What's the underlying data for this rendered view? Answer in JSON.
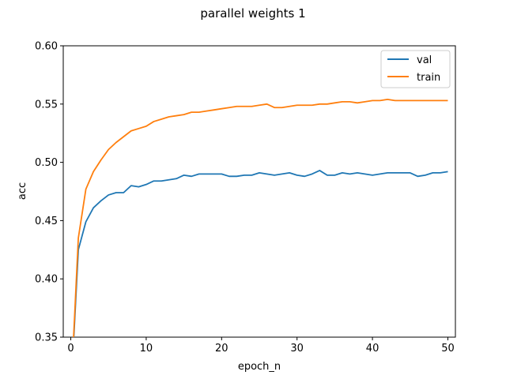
{
  "chart_data": {
    "type": "line",
    "title": "parallel weights 1",
    "xlabel": "epoch_n",
    "ylabel": "acc",
    "xlim": [
      -1,
      51
    ],
    "ylim": [
      0.35,
      0.6
    ],
    "xticks": [
      0,
      10,
      20,
      30,
      40,
      50
    ],
    "yticks": [
      0.35,
      0.4,
      0.45,
      0.5,
      0.55,
      0.6
    ],
    "ytick_labels": [
      "0.35",
      "0.40",
      "0.45",
      "0.50",
      "0.55",
      "0.60"
    ],
    "grid": false,
    "legend_position": "top-right",
    "x": [
      0,
      1,
      2,
      3,
      4,
      5,
      6,
      7,
      8,
      9,
      10,
      11,
      12,
      13,
      14,
      15,
      16,
      17,
      18,
      19,
      20,
      21,
      22,
      23,
      24,
      25,
      26,
      27,
      28,
      29,
      30,
      31,
      32,
      33,
      34,
      35,
      36,
      37,
      38,
      39,
      40,
      41,
      42,
      43,
      44,
      45,
      46,
      47,
      48,
      49,
      50
    ],
    "series": [
      {
        "name": "val",
        "color": "#1f77b4",
        "values": [
          0.3,
          0.425,
          0.449,
          0.461,
          0.467,
          0.472,
          0.474,
          0.474,
          0.48,
          0.479,
          0.481,
          0.484,
          0.484,
          0.485,
          0.486,
          0.489,
          0.488,
          0.49,
          0.49,
          0.49,
          0.49,
          0.488,
          0.488,
          0.489,
          0.489,
          0.491,
          0.49,
          0.489,
          0.49,
          0.491,
          0.489,
          0.488,
          0.49,
          0.493,
          0.489,
          0.489,
          0.491,
          0.49,
          0.491,
          0.49,
          0.489,
          0.49,
          0.491,
          0.491,
          0.491,
          0.491,
          0.488,
          0.489,
          0.491,
          0.491,
          0.492
        ]
      },
      {
        "name": "train",
        "color": "#ff7f0e",
        "values": [
          0.3,
          0.435,
          0.477,
          0.492,
          0.502,
          0.511,
          0.517,
          0.522,
          0.527,
          0.529,
          0.531,
          0.535,
          0.537,
          0.539,
          0.54,
          0.541,
          0.543,
          0.543,
          0.544,
          0.545,
          0.546,
          0.547,
          0.548,
          0.548,
          0.548,
          0.549,
          0.55,
          0.547,
          0.547,
          0.548,
          0.549,
          0.549,
          0.549,
          0.55,
          0.55,
          0.551,
          0.552,
          0.552,
          0.551,
          0.552,
          0.553,
          0.553,
          0.554,
          0.553,
          0.553,
          0.553,
          0.553,
          0.553,
          0.553,
          0.553,
          0.553
        ]
      }
    ]
  }
}
